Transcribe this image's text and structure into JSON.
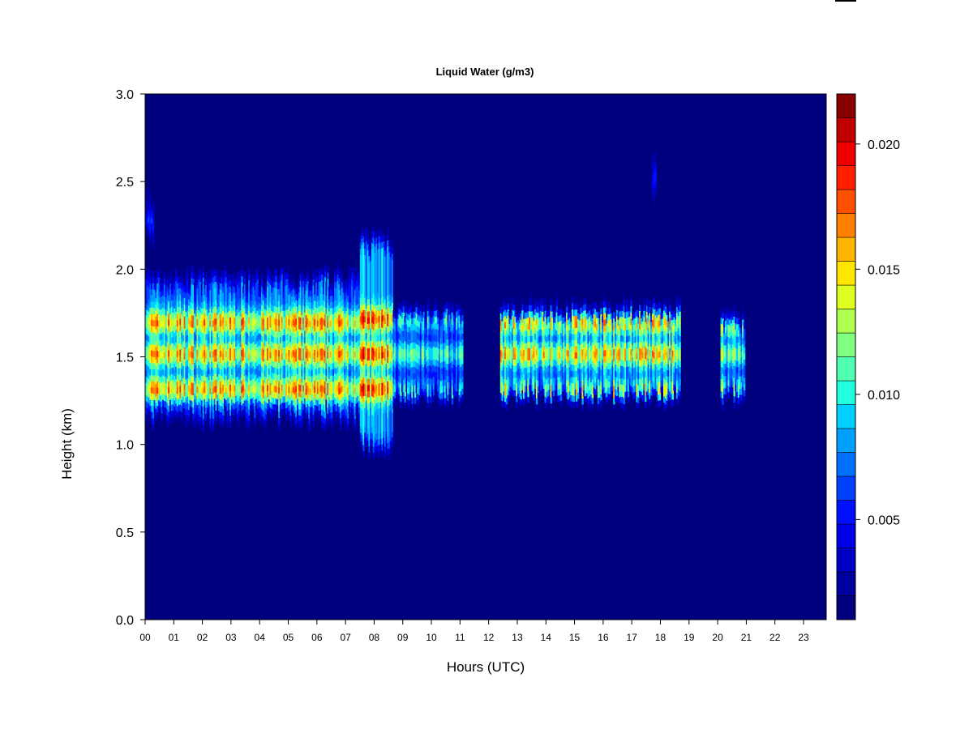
{
  "chart_data": {
    "type": "heatmap",
    "title": "Liquid Water (g/m3)",
    "xlabel": "Hours (UTC)",
    "ylabel": "Height (km)",
    "xlim": [
      0,
      23.9
    ],
    "ylim": [
      0,
      3.0
    ],
    "x_ticks": [
      {
        "value": 0,
        "label": "00"
      },
      {
        "value": 1,
        "label": "01"
      },
      {
        "value": 2,
        "label": "02"
      },
      {
        "value": 3,
        "label": "03"
      },
      {
        "value": 4,
        "label": "04"
      },
      {
        "value": 5,
        "label": "05"
      },
      {
        "value": 6,
        "label": "06"
      },
      {
        "value": 7,
        "label": "07"
      },
      {
        "value": 8,
        "label": "08"
      },
      {
        "value": 9,
        "label": "09"
      },
      {
        "value": 10,
        "label": "10"
      },
      {
        "value": 11,
        "label": "11"
      },
      {
        "value": 12,
        "label": "12"
      },
      {
        "value": 13,
        "label": "13"
      },
      {
        "value": 14,
        "label": "14"
      },
      {
        "value": 15,
        "label": "15"
      },
      {
        "value": 16,
        "label": "16"
      },
      {
        "value": 17,
        "label": "17"
      },
      {
        "value": 18,
        "label": "18"
      },
      {
        "value": 19,
        "label": "19"
      },
      {
        "value": 20,
        "label": "20"
      },
      {
        "value": 21,
        "label": "21"
      },
      {
        "value": 22,
        "label": "22"
      },
      {
        "value": 23,
        "label": "23"
      }
    ],
    "y_ticks": [
      {
        "value": 0.0,
        "label": "0.0"
      },
      {
        "value": 0.5,
        "label": "0.5"
      },
      {
        "value": 1.0,
        "label": "1.0"
      },
      {
        "value": 1.5,
        "label": "1.5"
      },
      {
        "value": 2.0,
        "label": "2.0"
      },
      {
        "value": 2.5,
        "label": "2.5"
      },
      {
        "value": 3.0,
        "label": "3.0"
      }
    ],
    "colorbar": {
      "vmin": 0.001,
      "vmax": 0.022,
      "ticks": [
        {
          "value": 0.005,
          "label": "0.005"
        },
        {
          "value": 0.01,
          "label": "0.010"
        },
        {
          "value": 0.015,
          "label": "0.015"
        },
        {
          "value": 0.02,
          "label": "0.020"
        }
      ],
      "colors": [
        "#00007f",
        "#0000a0",
        "#0000c4",
        "#0000e6",
        "#0010ff",
        "#0040ff",
        "#0070ff",
        "#00a0ff",
        "#00d0ff",
        "#20ffdf",
        "#50ffaf",
        "#80ff80",
        "#afff50",
        "#dfff20",
        "#ffe600",
        "#ffb400",
        "#ff8000",
        "#ff5000",
        "#ff2000",
        "#ee0000",
        "#c00000",
        "#880000"
      ]
    },
    "background_color": "#00007f",
    "cloud_regions": [
      {
        "name": "morning-layer",
        "x": [
          0.0,
          7.5
        ],
        "y": [
          1.1,
          1.97
        ],
        "peak": 0.019,
        "bands": [
          1.3,
          1.5,
          1.68
        ]
      },
      {
        "name": "burst-08",
        "x": [
          7.5,
          8.65
        ],
        "y": [
          0.92,
          2.2
        ],
        "peak": 0.021,
        "bands": [
          1.3,
          1.5,
          1.7
        ]
      },
      {
        "name": "segment-09-11",
        "x": [
          8.65,
          11.1
        ],
        "y": [
          1.22,
          1.78
        ],
        "peak": 0.013,
        "bands": [
          1.28,
          1.5,
          1.7
        ]
      },
      {
        "name": "segment-12-19",
        "x": [
          12.4,
          18.7
        ],
        "y": [
          1.22,
          1.8
        ],
        "peak": 0.018,
        "bands": [
          1.28,
          1.5,
          1.68
        ]
      },
      {
        "name": "segment-20-21",
        "x": [
          20.1,
          20.95
        ],
        "y": [
          1.22,
          1.75
        ],
        "peak": 0.015,
        "bands": [
          1.3,
          1.5,
          1.65
        ]
      },
      {
        "name": "high-streak-00",
        "x": [
          0.0,
          0.3
        ],
        "y": [
          2.1,
          2.45
        ],
        "peak": 0.007,
        "bands": [
          2.25
        ]
      },
      {
        "name": "high-streak-18",
        "x": [
          17.7,
          17.85
        ],
        "y": [
          2.3,
          2.7
        ],
        "peak": 0.006,
        "bands": [
          2.5
        ]
      }
    ]
  }
}
